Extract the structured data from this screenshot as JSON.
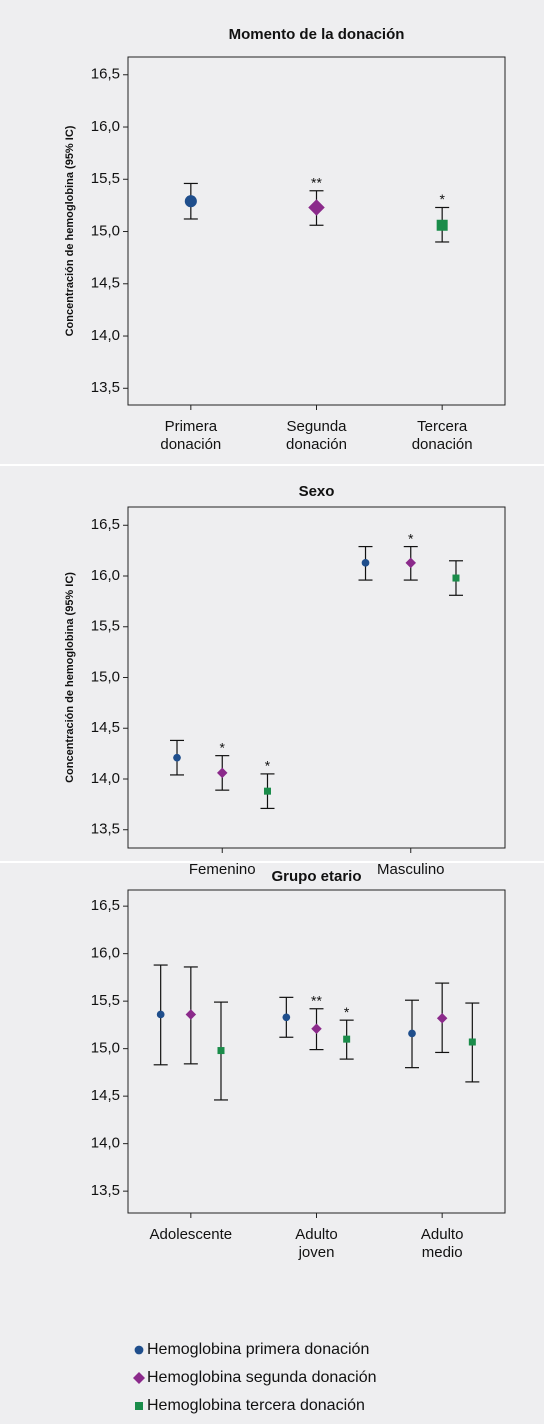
{
  "chart_data": [
    {
      "type": "errorbar",
      "title": "Momento de la donación",
      "ylabel": "Concentración de hemoglobina (95% IC)",
      "categories": [
        [
          "Primera",
          "donación"
        ],
        [
          "Segunda",
          "donación"
        ],
        [
          "Tercera",
          "donación"
        ]
      ],
      "ylim": [
        13.34,
        16.67
      ],
      "yticks": [
        {
          "value": 13.5,
          "label": "13,5"
        },
        {
          "value": 14,
          "label": "14,0"
        },
        {
          "value": 14.5,
          "label": "14,5"
        },
        {
          "value": 15,
          "label": "15,0"
        },
        {
          "value": 15.5,
          "label": "15,5"
        },
        {
          "value": 16,
          "label": "16,0"
        },
        {
          "value": 16.5,
          "label": "16,5"
        }
      ],
      "series": [
        {
          "color": "#1f4e8c",
          "marker": "circle",
          "values": [
            15.29,
            null,
            null
          ],
          "lower": [
            15.12,
            null,
            null
          ],
          "upper": [
            15.46,
            null,
            null
          ],
          "annotations": [
            null,
            null,
            null
          ]
        },
        {
          "color": "#8b2a8b",
          "marker": "diamond",
          "values": [
            null,
            15.23,
            null
          ],
          "lower": [
            null,
            15.06,
            null
          ],
          "upper": [
            null,
            15.39,
            null
          ],
          "annotations": [
            null,
            "**",
            null
          ]
        },
        {
          "color": "#1a8c4a",
          "marker": "square",
          "values": [
            null,
            null,
            15.06
          ],
          "lower": [
            null,
            null,
            14.9
          ],
          "upper": [
            null,
            null,
            15.23
          ],
          "annotations": [
            null,
            null,
            "*"
          ]
        }
      ]
    },
    {
      "type": "errorbar",
      "title": "Sexo",
      "ylabel": "Concentración de hemoglobina (95% IC)",
      "categories": [
        [
          "Femenino"
        ],
        [
          "Masculino"
        ]
      ],
      "ylim": [
        13.32,
        16.68
      ],
      "yticks": [
        {
          "value": 13.5,
          "label": "13,5"
        },
        {
          "value": 14,
          "label": "14,0"
        },
        {
          "value": 14.5,
          "label": "14,5"
        },
        {
          "value": 15,
          "label": "15,0"
        },
        {
          "value": 15.5,
          "label": "15,5"
        },
        {
          "value": 16,
          "label": "16,0"
        },
        {
          "value": 16.5,
          "label": "16,5"
        }
      ],
      "series": [
        {
          "color": "#1f4e8c",
          "marker": "circle",
          "values": [
            14.21,
            16.13
          ],
          "lower": [
            14.04,
            15.96
          ],
          "upper": [
            14.38,
            16.29
          ],
          "annotations": [
            null,
            null
          ]
        },
        {
          "color": "#8b2a8b",
          "marker": "diamond",
          "values": [
            14.06,
            16.13
          ],
          "lower": [
            13.89,
            15.96
          ],
          "upper": [
            14.23,
            16.29
          ],
          "annotations": [
            "*",
            "*"
          ]
        },
        {
          "color": "#1a8c4a",
          "marker": "square",
          "values": [
            13.88,
            15.98
          ],
          "lower": [
            13.71,
            15.81
          ],
          "upper": [
            14.05,
            16.15
          ],
          "annotations": [
            "*",
            null
          ]
        }
      ]
    },
    {
      "type": "errorbar",
      "title": "Grupo etario",
      "categories": [
        [
          "Adolescente"
        ],
        [
          "Adulto",
          "joven"
        ],
        [
          "Adulto",
          "medio"
        ]
      ],
      "ylim": [
        13.27,
        16.67
      ],
      "yticks": [
        {
          "value": 13.5,
          "label": "13,5"
        },
        {
          "value": 14,
          "label": "14,0"
        },
        {
          "value": 14.5,
          "label": "14,5"
        },
        {
          "value": 15,
          "label": "15,0"
        },
        {
          "value": 15.5,
          "label": "15,5"
        },
        {
          "value": 16,
          "label": "16,0"
        },
        {
          "value": 16.5,
          "label": "16,5"
        }
      ],
      "legend": "bottom",
      "series": [
        {
          "name": "Hemoglobina primera donación",
          "color": "#1f4e8c",
          "marker": "circle",
          "values": [
            15.36,
            15.33,
            15.16
          ],
          "lower": [
            14.83,
            15.12,
            14.8
          ],
          "upper": [
            15.88,
            15.54,
            15.51
          ],
          "annotations": [
            null,
            null,
            null
          ]
        },
        {
          "name": "Hemoglobina segunda donación",
          "color": "#8b2a8b",
          "marker": "diamond",
          "values": [
            15.36,
            15.21,
            15.32
          ],
          "lower": [
            14.84,
            14.99,
            14.96
          ],
          "upper": [
            15.86,
            15.42,
            15.69
          ],
          "annotations": [
            null,
            "**",
            null
          ]
        },
        {
          "name": "Hemoglobina tercera donación",
          "color": "#1a8c4a",
          "marker": "square",
          "values": [
            14.98,
            15.1,
            15.07
          ],
          "lower": [
            14.46,
            14.89,
            14.65
          ],
          "upper": [
            15.49,
            15.3,
            15.48
          ],
          "annotations": [
            null,
            "*",
            null
          ]
        }
      ]
    }
  ]
}
